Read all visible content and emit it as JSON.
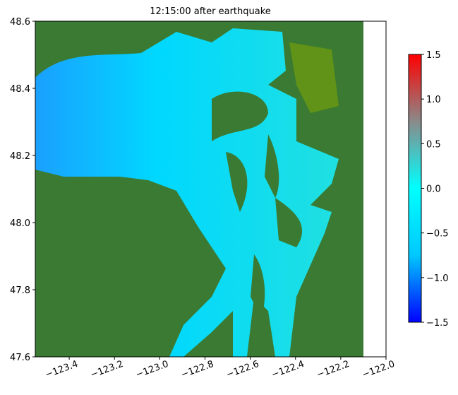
{
  "chart_data": {
    "type": "map",
    "title": "12:15:00 after earthquake",
    "xlim": [
      -123.55,
      -122.0
    ],
    "xticks": [
      {
        "value": -123.4,
        "label": "−123.4"
      },
      {
        "value": -123.2,
        "label": "−123.2"
      },
      {
        "value": -123.0,
        "label": "−123.0"
      },
      {
        "value": -122.8,
        "label": "−122.8"
      },
      {
        "value": -122.6,
        "label": "−122.6"
      },
      {
        "value": -122.4,
        "label": "−122.4"
      },
      {
        "value": -122.2,
        "label": "−122.2"
      },
      {
        "value": -122.0,
        "label": "−122.0"
      }
    ],
    "ylim": [
      47.6,
      48.6
    ],
    "yticks": [
      47.6,
      47.8,
      {
        "value": 48.0,
        "label": "48.0"
      },
      48.2,
      48.4,
      48.6
    ],
    "land_color": "#3a7a32",
    "colorbar": {
      "clim": [
        -1.5,
        1.5
      ],
      "colors": [
        "#0000ff",
        "#00c8ff",
        "#00ffff",
        "#8a8a8a",
        "#ff0000"
      ],
      "ticks": [
        {
          "value": 1.5,
          "label": "1.5"
        },
        {
          "value": 1.0,
          "label": "1.0"
        },
        {
          "value": 0.5,
          "label": "0.5"
        },
        {
          "value": 0.0,
          "label": "0.0"
        },
        {
          "value": -0.5,
          "label": "−0.5"
        },
        {
          "value": -1.0,
          "label": "−1.0"
        },
        {
          "value": -1.5,
          "label": "−1.5"
        }
      ]
    }
  }
}
